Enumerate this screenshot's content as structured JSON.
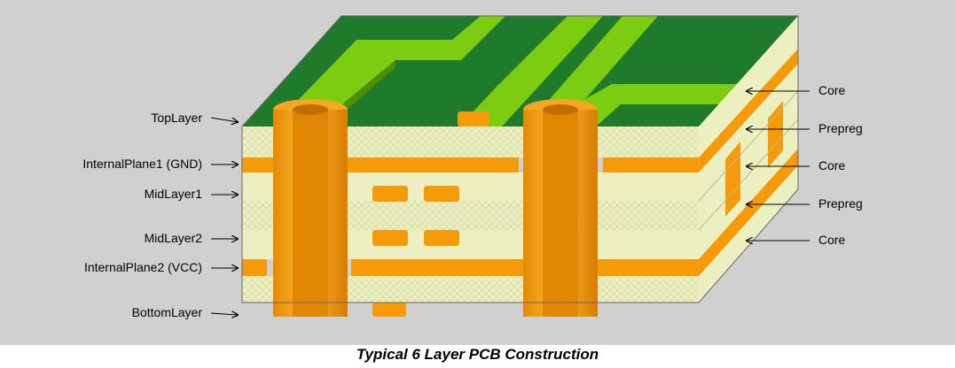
{
  "caption": "Typical 6 Layer PCB Construction",
  "left_labels": [
    "TopLayer",
    "InternalPlane1 (GND)",
    "MidLayer1",
    "MidLayer2",
    "InternalPlane2 (VCC)",
    "BottomLayer"
  ],
  "right_labels": [
    "Core",
    "Prepreg",
    "Core",
    "Prepreg",
    "Core"
  ],
  "colors": {
    "background": "#d0d0d0",
    "solder_mask": "#1f7a2c",
    "copper_top_trace": "#7ccc12",
    "copper": "#f59a08",
    "substrate": "#ecefc0",
    "via": "#f39c12"
  }
}
